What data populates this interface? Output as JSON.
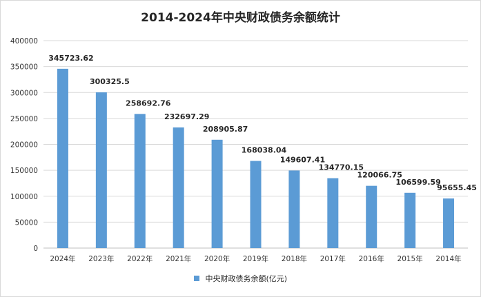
{
  "colors": {
    "bar": "#5b9bd5",
    "grid": "#d9d9d9",
    "axis": "#bfbfbf"
  },
  "chart_data": {
    "type": "bar",
    "title": "2014-2024年中央财政债务余额统计",
    "categories": [
      "2024年",
      "2023年",
      "2022年",
      "2021年",
      "2020年",
      "2019年",
      "2018年",
      "2017年",
      "2016年",
      "2015年",
      "2014年"
    ],
    "series": [
      {
        "name": "中央财政债务余额(亿元)",
        "values": [
          345723.62,
          300325.5,
          258692.76,
          232697.29,
          208905.87,
          168038.04,
          149607.41,
          134770.15,
          120066.75,
          106599.59,
          95655.45
        ]
      }
    ],
    "data_labels": [
      "345723.62",
      "300325.5",
      "258692.76",
      "232697.29",
      "208905.87",
      "168038.04",
      "149607.41",
      "134770.15",
      "120066.75",
      "106599.59",
      "95655.45"
    ],
    "y_ticks": [
      0,
      50000,
      100000,
      150000,
      200000,
      250000,
      300000,
      350000,
      400000
    ],
    "ylim": [
      0,
      400000
    ],
    "grid": true,
    "legend": "bottom"
  }
}
